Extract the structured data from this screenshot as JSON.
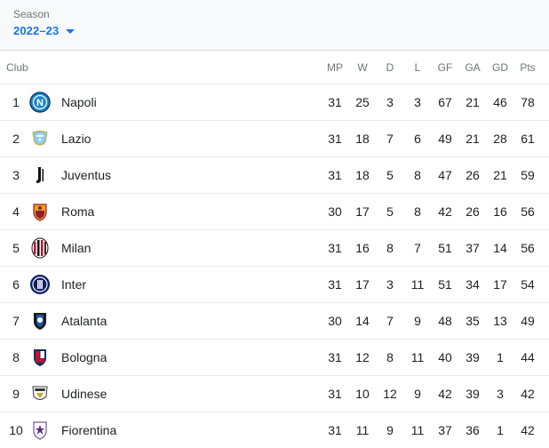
{
  "season": {
    "label": "Season",
    "value": "2022–23"
  },
  "table": {
    "headers": {
      "club": "Club",
      "mp": "MP",
      "w": "W",
      "d": "D",
      "l": "L",
      "gf": "GF",
      "ga": "GA",
      "gd": "GD",
      "pts": "Pts"
    },
    "rows": [
      {
        "pos": "1",
        "club": "Napoli",
        "crest": "napoli-crest-icon",
        "mp": "31",
        "w": "25",
        "d": "3",
        "l": "3",
        "gf": "67",
        "ga": "21",
        "gd": "46",
        "pts": "78"
      },
      {
        "pos": "2",
        "club": "Lazio",
        "crest": "lazio-crest-icon",
        "mp": "31",
        "w": "18",
        "d": "7",
        "l": "6",
        "gf": "49",
        "ga": "21",
        "gd": "28",
        "pts": "61"
      },
      {
        "pos": "3",
        "club": "Juventus",
        "crest": "juventus-crest-icon",
        "mp": "31",
        "w": "18",
        "d": "5",
        "l": "8",
        "gf": "47",
        "ga": "26",
        "gd": "21",
        "pts": "59"
      },
      {
        "pos": "4",
        "club": "Roma",
        "crest": "roma-crest-icon",
        "mp": "30",
        "w": "17",
        "d": "5",
        "l": "8",
        "gf": "42",
        "ga": "26",
        "gd": "16",
        "pts": "56"
      },
      {
        "pos": "5",
        "club": "Milan",
        "crest": "milan-crest-icon",
        "mp": "31",
        "w": "16",
        "d": "8",
        "l": "7",
        "gf": "51",
        "ga": "37",
        "gd": "14",
        "pts": "56"
      },
      {
        "pos": "6",
        "club": "Inter",
        "crest": "inter-crest-icon",
        "mp": "31",
        "w": "17",
        "d": "3",
        "l": "11",
        "gf": "51",
        "ga": "34",
        "gd": "17",
        "pts": "54"
      },
      {
        "pos": "7",
        "club": "Atalanta",
        "crest": "atalanta-crest-icon",
        "mp": "30",
        "w": "14",
        "d": "7",
        "l": "9",
        "gf": "48",
        "ga": "35",
        "gd": "13",
        "pts": "49"
      },
      {
        "pos": "8",
        "club": "Bologna",
        "crest": "bologna-crest-icon",
        "mp": "31",
        "w": "12",
        "d": "8",
        "l": "11",
        "gf": "40",
        "ga": "39",
        "gd": "1",
        "pts": "44"
      },
      {
        "pos": "9",
        "club": "Udinese",
        "crest": "udinese-crest-icon",
        "mp": "31",
        "w": "10",
        "d": "12",
        "l": "9",
        "gf": "42",
        "ga": "39",
        "gd": "3",
        "pts": "42"
      },
      {
        "pos": "10",
        "club": "Fiorentina",
        "crest": "fiorentina-crest-icon",
        "mp": "31",
        "w": "11",
        "d": "9",
        "l": "11",
        "gf": "37",
        "ga": "36",
        "gd": "1",
        "pts": "42"
      }
    ]
  },
  "colors": {
    "accent": "#1a73e8",
    "header_bg": "#f8f9fa",
    "muted_text": "#70757a",
    "divider": "#ebebeb"
  }
}
